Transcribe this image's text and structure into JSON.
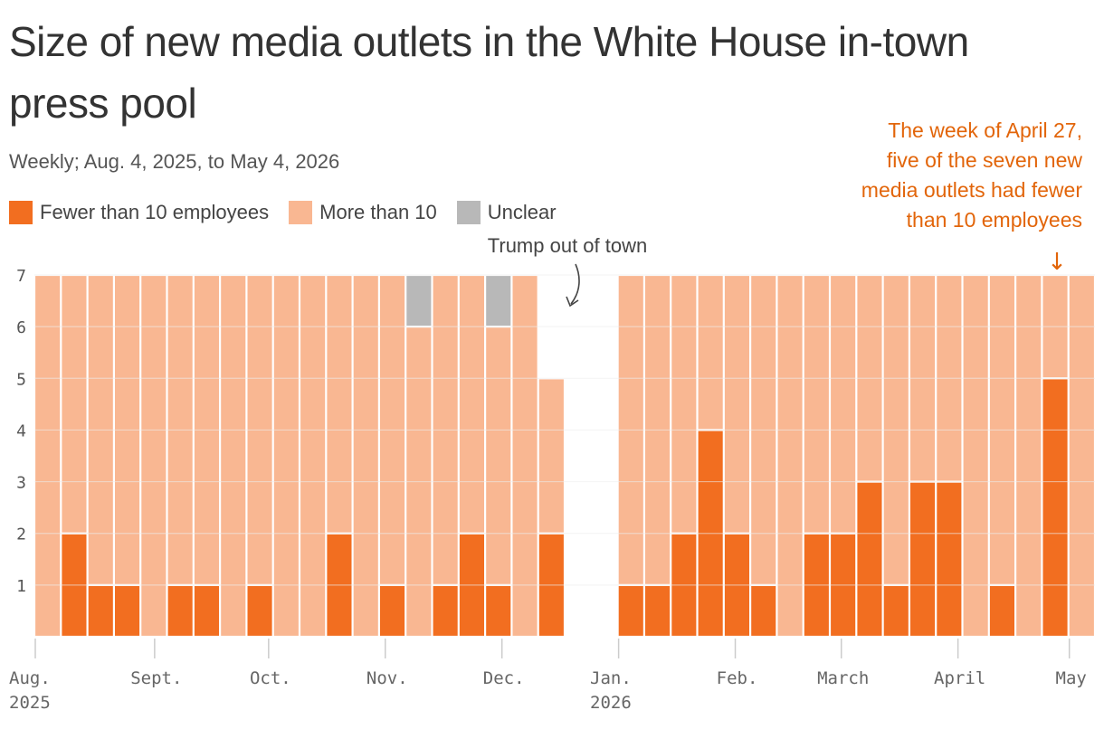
{
  "title": "Size of new media outlets in the White House in-town press pool",
  "subtitle": "Weekly; Aug. 4, 2025, to May 4, 2026",
  "legend": [
    {
      "label": "Fewer than 10 employees",
      "color": "#f26e20"
    },
    {
      "label": "More than 10",
      "color": "#f9b792"
    },
    {
      "label": "Unclear",
      "color": "#b8b8b8"
    }
  ],
  "annotations": {
    "trump": "Trump out of town",
    "april": "The week of April 27,\nfive of the seven new\nmedia outlets had fewer\nthan 10 employees",
    "arrow": "↓"
  },
  "chart_data": {
    "type": "bar",
    "stacked": true,
    "x": [
      "2025-08-04",
      "2025-08-11",
      "2025-08-18",
      "2025-08-25",
      "2025-09-01",
      "2025-09-08",
      "2025-09-15",
      "2025-09-22",
      "2025-09-29",
      "2025-10-06",
      "2025-10-13",
      "2025-10-20",
      "2025-10-27",
      "2025-11-03",
      "2025-11-10",
      "2025-11-17",
      "2025-11-24",
      "2025-12-01",
      "2025-12-08",
      "2025-12-15",
      "2025-12-22",
      "2025-12-29",
      "2026-01-05",
      "2026-01-12",
      "2026-01-19",
      "2026-01-26",
      "2026-02-02",
      "2026-02-09",
      "2026-02-16",
      "2026-02-23",
      "2026-03-02",
      "2026-03-09",
      "2026-03-16",
      "2026-03-23",
      "2026-03-30",
      "2026-04-06",
      "2026-04-13",
      "2026-04-20",
      "2026-04-27",
      "2026-05-04"
    ],
    "series": [
      {
        "name": "Fewer than 10 employees",
        "color": "#f26e20",
        "values": [
          0,
          2,
          1,
          1,
          0,
          1,
          1,
          0,
          1,
          0,
          0,
          2,
          0,
          1,
          0,
          1,
          2,
          1,
          0,
          2,
          0,
          0,
          1,
          1,
          2,
          4,
          2,
          1,
          0,
          2,
          2,
          3,
          1,
          3,
          3,
          0,
          1,
          0,
          5,
          0
        ]
      },
      {
        "name": "More than 10",
        "color": "#f9b792",
        "values": [
          7,
          5,
          6,
          6,
          7,
          6,
          6,
          7,
          6,
          7,
          7,
          5,
          7,
          6,
          6,
          6,
          5,
          5,
          7,
          3,
          0,
          0,
          6,
          6,
          5,
          3,
          5,
          6,
          7,
          5,
          5,
          4,
          6,
          4,
          4,
          7,
          6,
          7,
          2,
          7
        ]
      },
      {
        "name": "Unclear",
        "color": "#b8b8b8",
        "values": [
          0,
          0,
          0,
          0,
          0,
          0,
          0,
          0,
          0,
          0,
          0,
          0,
          0,
          0,
          1,
          0,
          0,
          1,
          0,
          0,
          0,
          0,
          0,
          0,
          0,
          0,
          0,
          0,
          0,
          0,
          0,
          0,
          0,
          0,
          0,
          0,
          0,
          0,
          0,
          0
        ]
      }
    ],
    "ylim": [
      0,
      7
    ],
    "yticks": [
      1,
      2,
      3,
      4,
      5,
      6,
      7
    ],
    "xticks": [
      {
        "label": "Aug.",
        "sub": "2025",
        "index": 0
      },
      {
        "label": "Sept.",
        "sub": "",
        "index": 4.5
      },
      {
        "label": "Oct.",
        "sub": "",
        "index": 8.8
      },
      {
        "label": "Nov.",
        "sub": "",
        "index": 13.2
      },
      {
        "label": "Dec.",
        "sub": "",
        "index": 17.6
      },
      {
        "label": "Jan.",
        "sub": "2026",
        "index": 22
      },
      {
        "label": "Feb.",
        "sub": "",
        "index": 26.4
      },
      {
        "label": "March",
        "sub": "",
        "index": 30.4
      },
      {
        "label": "April",
        "sub": "",
        "index": 34.8
      },
      {
        "label": "May",
        "sub": "",
        "index": 39
      }
    ],
    "grid": true,
    "legend_position": "top-left"
  }
}
